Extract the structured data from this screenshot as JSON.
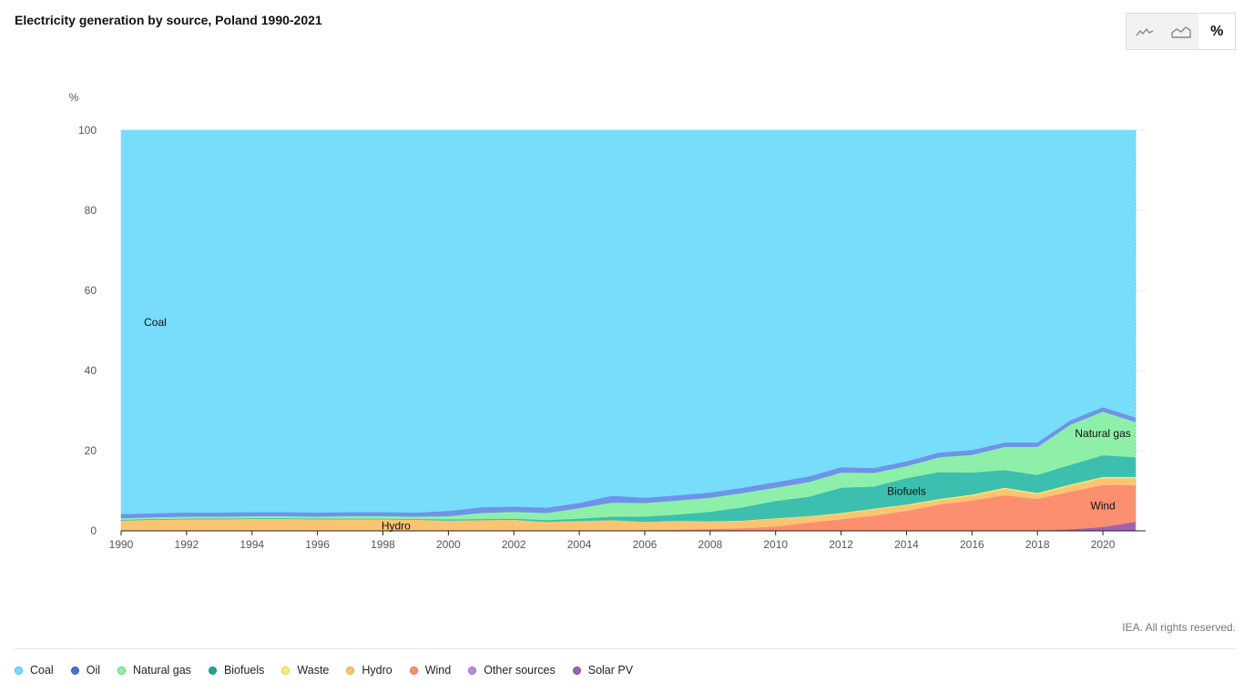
{
  "header": {
    "title": "Electricity generation by source, Poland 1990-2021",
    "view_buttons": [
      {
        "icon": "line-chart-icon",
        "label": ""
      },
      {
        "icon": "area-chart-icon",
        "label": ""
      },
      {
        "icon": "percent-icon",
        "label": "%"
      }
    ],
    "active_view": "%"
  },
  "footer": {
    "source": "IEA. All rights reserved."
  },
  "chart_data": {
    "type": "area",
    "stacked": true,
    "percent": true,
    "title": "Electricity generation by source, Poland 1990-2021",
    "ylabel": "%",
    "xlabel": "",
    "ylim": [
      0,
      100
    ],
    "yticks": [
      0,
      20,
      40,
      60,
      80,
      100
    ],
    "xticks": [
      1990,
      1992,
      1994,
      1996,
      1998,
      2000,
      2002,
      2004,
      2006,
      2008,
      2010,
      2012,
      2014,
      2016,
      2018,
      2020
    ],
    "grid": "horizontal",
    "legend_position": "bottom",
    "x": [
      1990,
      1991,
      1992,
      1993,
      1994,
      1995,
      1996,
      1997,
      1998,
      1999,
      2000,
      2001,
      2002,
      2003,
      2004,
      2005,
      2006,
      2007,
      2008,
      2009,
      2010,
      2011,
      2012,
      2013,
      2014,
      2015,
      2016,
      2017,
      2018,
      2019,
      2020,
      2021
    ],
    "series": [
      {
        "name": "Solar PV",
        "color": "#a063b0",
        "values": [
          0,
          0,
          0,
          0,
          0,
          0,
          0,
          0,
          0,
          0,
          0,
          0,
          0,
          0,
          0,
          0,
          0,
          0,
          0,
          0,
          0,
          0,
          0,
          0,
          0,
          0,
          0,
          0,
          0.1,
          0.4,
          1.0,
          2.3
        ]
      },
      {
        "name": "Other sources",
        "color": "#b48ee0",
        "values": [
          0,
          0,
          0,
          0,
          0,
          0,
          0,
          0,
          0,
          0,
          0,
          0,
          0,
          0,
          0,
          0,
          0,
          0,
          0,
          0,
          0,
          0,
          0,
          0,
          0,
          0,
          0,
          0,
          0,
          0,
          0,
          0
        ]
      },
      {
        "name": "Wind",
        "color": "#fb8f6f",
        "values": [
          0,
          0,
          0,
          0,
          0,
          0,
          0,
          0,
          0,
          0,
          0,
          0,
          0.1,
          0.1,
          0.1,
          0.1,
          0.2,
          0.3,
          0.5,
          0.7,
          1.1,
          2.1,
          2.9,
          3.8,
          5.0,
          6.6,
          7.6,
          8.9,
          7.9,
          9.4,
          10.5,
          9.1
        ]
      },
      {
        "name": "Hydro",
        "color": "#fbc473",
        "values": [
          2.6,
          2.8,
          2.9,
          2.9,
          3.0,
          3.0,
          2.9,
          2.9,
          2.9,
          2.8,
          2.6,
          2.7,
          2.7,
          2.2,
          2.4,
          2.6,
          2.1,
          2.1,
          1.8,
          1.8,
          2.0,
          1.5,
          1.4,
          1.6,
          1.4,
          1.1,
          1.2,
          1.6,
          1.2,
          1.5,
          1.7,
          1.8
        ]
      },
      {
        "name": "Waste",
        "color": "#f5ef70",
        "values": [
          0,
          0,
          0,
          0,
          0,
          0,
          0,
          0,
          0,
          0,
          0,
          0,
          0,
          0,
          0,
          0,
          0,
          0.1,
          0.1,
          0.1,
          0.1,
          0.1,
          0.2,
          0.2,
          0.2,
          0.3,
          0.3,
          0.3,
          0.3,
          0.3,
          0.3,
          0.3
        ]
      },
      {
        "name": "Biofuels",
        "color": "#3cbfae",
        "values": [
          0.2,
          0.2,
          0.2,
          0.2,
          0.2,
          0.2,
          0.2,
          0.2,
          0.2,
          0.2,
          0.3,
          0.3,
          0.3,
          0.4,
          0.6,
          0.9,
          1.3,
          1.6,
          2.4,
          3.3,
          4.3,
          4.8,
          6.3,
          5.5,
          6.6,
          6.7,
          5.5,
          4.4,
          4.5,
          4.9,
          5.4,
          4.9
        ]
      },
      {
        "name": "Natural gas",
        "color": "#8ef0a8",
        "values": [
          0.4,
          0.4,
          0.5,
          0.5,
          0.5,
          0.5,
          0.5,
          0.6,
          0.6,
          0.6,
          0.8,
          1.5,
          1.7,
          1.8,
          2.6,
          3.5,
          3.4,
          3.5,
          3.5,
          3.6,
          3.3,
          3.7,
          3.8,
          3.4,
          3.0,
          3.7,
          4.4,
          5.8,
          7.0,
          10.0,
          10.9,
          8.8
        ]
      },
      {
        "name": "Oil",
        "color": "#6e93e8",
        "values": [
          1.0,
          1.0,
          1.0,
          1.0,
          1.0,
          1.0,
          1.0,
          1.0,
          1.0,
          1.0,
          1.3,
          1.4,
          1.3,
          1.3,
          1.3,
          1.7,
          1.3,
          1.3,
          1.3,
          1.3,
          1.4,
          1.4,
          1.3,
          1.2,
          1.2,
          1.2,
          1.2,
          1.1,
          1.1,
          1.1,
          1.1,
          1.1
        ]
      },
      {
        "name": "Coal",
        "color": "#78dcfb",
        "values": [
          95.8,
          95.6,
          95.4,
          95.4,
          95.3,
          95.3,
          95.4,
          95.3,
          95.3,
          95.4,
          95.0,
          94.1,
          93.9,
          94.2,
          93.0,
          91.2,
          91.7,
          91.1,
          90.4,
          89.2,
          87.8,
          86.4,
          84.1,
          84.3,
          82.6,
          80.4,
          79.8,
          77.9,
          78.0,
          72.4,
          69.1,
          71.7
        ]
      }
    ],
    "labels": [
      {
        "series": "Coal",
        "text": "Coal"
      },
      {
        "series": "Hydro",
        "text": "Hydro"
      },
      {
        "series": "Biofuels",
        "text": "Biofuels"
      },
      {
        "series": "Natural gas",
        "text": "Natural gas"
      },
      {
        "series": "Wind",
        "text": "Wind"
      }
    ]
  },
  "legend": [
    {
      "label": "Coal",
      "color": "#78dcfb",
      "border": "#3fbfe6"
    },
    {
      "label": "Oil",
      "color": "#4a72d8",
      "border": "#3558b8"
    },
    {
      "label": "Natural gas",
      "color": "#8ef0a8",
      "border": "#55cf77"
    },
    {
      "label": "Biofuels",
      "color": "#21a693",
      "border": "#178a7a"
    },
    {
      "label": "Waste",
      "color": "#f5ef70",
      "border": "#d8cf3c"
    },
    {
      "label": "Hydro",
      "color": "#fbc473",
      "border": "#e6a33b"
    },
    {
      "label": "Wind",
      "color": "#fb8f6f",
      "border": "#e76a44"
    },
    {
      "label": "Other sources",
      "color": "#b48ee0",
      "border": "#9568cf"
    },
    {
      "label": "Solar PV",
      "color": "#a063b0",
      "border": "#834596"
    }
  ]
}
